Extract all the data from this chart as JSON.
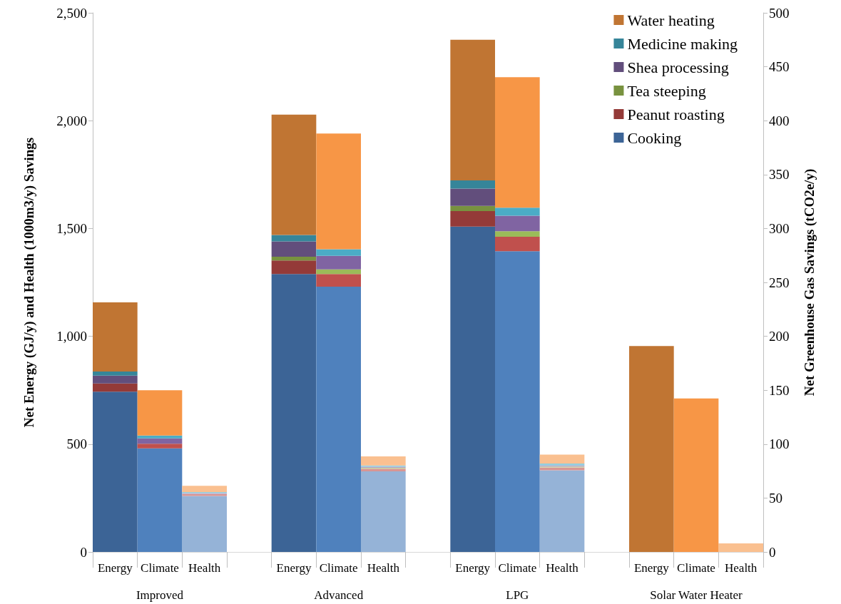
{
  "chart_data": {
    "type": "bar",
    "stacked": true,
    "ylabel": "Net Energy (GJ/y) and Health (1000m3/y) Savings",
    "y2label": "Net Greenhouse Gas Savings (tCO2e/y)",
    "categories": [
      "Energy",
      "Climate",
      "Health",
      null,
      "Energy",
      "Climate",
      "Health",
      null,
      "Energy",
      "Climate",
      "Health",
      null,
      "Energy",
      "Climate",
      "Health"
    ],
    "annotations": [
      "Improved",
      "Advanced",
      "LPG",
      "Solar Water Heater"
    ],
    "ylim": [
      0,
      2500
    ],
    "yticks": [
      0,
      500,
      {
        "value": 1000,
        "label": "1,000"
      },
      {
        "value": 1500,
        "label": "1,500"
      },
      {
        "value": 2000,
        "label": "2,000"
      },
      {
        "value": 2500,
        "label": "2,500"
      }
    ],
    "y2lim": [
      0,
      500
    ],
    "y2ticks": [
      0,
      50,
      100,
      150,
      200,
      250,
      300,
      350,
      400,
      450,
      500
    ],
    "grid": false,
    "legend": "top right",
    "series": [
      {
        "name": "Cooking",
        "color": "#3c6496",
        "colors": [
          "#3c6496",
          null,
          "#95b3d7",
          null,
          "#3c6496",
          null,
          "#95b3d7",
          null,
          "#3c6496",
          null,
          "#95b3d7",
          null,
          "#3c6496",
          null,
          "#95b3d7"
        ],
        "values": [
          743,
          null,
          260,
          null,
          1289,
          null,
          374,
          null,
          1509,
          null,
          379,
          null,
          0,
          null,
          0
        ]
      },
      {
        "axis": "y2",
        "colors": [
          null,
          "#4f81bd",
          null,
          null,
          null,
          "#4f81bd",
          null,
          null,
          null,
          "#4f81bd",
          null,
          null,
          null,
          "#4f81bd",
          null
        ],
        "values": [
          null,
          96,
          null,
          null,
          null,
          246,
          null,
          null,
          null,
          279,
          null,
          null,
          null,
          0,
          null
        ]
      },
      {
        "name": "Peanut roasting",
        "color": "#943a38",
        "colors": [
          "#943a38",
          null,
          "#d99694",
          null,
          "#943a38",
          null,
          "#d99694",
          null,
          "#943a38",
          null,
          "#d99694",
          null,
          "#943a38",
          null,
          "#d99694"
        ],
        "values": [
          38,
          null,
          9,
          null,
          63,
          null,
          12,
          null,
          72,
          null,
          13,
          null,
          0,
          null,
          0
        ]
      },
      {
        "axis": "y2",
        "colors": [
          null,
          "#c0504d",
          null,
          null,
          null,
          "#c0504d",
          null,
          null,
          null,
          "#c0504d",
          null,
          null,
          null,
          "#c0504d",
          null
        ],
        "values": [
          null,
          4.4,
          null,
          null,
          null,
          11.7,
          null,
          null,
          null,
          13.4,
          null,
          null,
          null,
          0,
          null
        ]
      },
      {
        "name": "Tea steeping",
        "color": "#78923f",
        "colors": [
          "#78923f",
          null,
          "#c3d69b",
          null,
          "#78923f",
          null,
          "#c3d69b",
          null,
          "#78923f",
          null,
          "#c3d69b",
          null,
          "#78923f",
          null,
          "#c3d69b"
        ],
        "values": [
          0,
          null,
          0,
          null,
          17,
          null,
          4,
          null,
          24,
          null,
          4,
          null,
          0,
          null,
          0
        ]
      },
      {
        "axis": "y2",
        "colors": [
          null,
          "#9bbb59",
          null,
          null,
          null,
          "#9bbb59",
          null,
          null,
          null,
          "#9bbb59",
          null,
          null,
          null,
          "#9bbb59",
          null
        ],
        "values": [
          null,
          0,
          null,
          null,
          null,
          4.4,
          null,
          null,
          null,
          5.1,
          null,
          null,
          null,
          0,
          null
        ]
      },
      {
        "name": "Shea processing",
        "color": "#624e7c",
        "colors": [
          "#624e7c",
          null,
          "#b3a2c7",
          null,
          "#624e7c",
          null,
          "#b3a2c7",
          null,
          "#624e7c",
          null,
          "#b3a2c7",
          null,
          "#624e7c",
          null,
          "#b3a2c7"
        ],
        "values": [
          37,
          null,
          4,
          null,
          71,
          null,
          5,
          null,
          80,
          null,
          5,
          null,
          0,
          null,
          0
        ]
      },
      {
        "axis": "y2",
        "colors": [
          null,
          "#8064a2",
          null,
          null,
          null,
          "#8064a2",
          null,
          null,
          null,
          "#8064a2",
          null,
          null,
          null,
          "#8064a2",
          null
        ],
        "values": [
          null,
          5,
          null,
          null,
          null,
          12.6,
          null,
          null,
          null,
          14.4,
          null,
          null,
          null,
          0,
          null
        ]
      },
      {
        "name": "Medicine making",
        "color": "#368599",
        "colors": [
          "#368599",
          null,
          "#93cddd",
          null,
          "#368599",
          null,
          "#93cddd",
          null,
          "#368599",
          null,
          "#93cddd",
          null,
          "#368599",
          null,
          "#93cddd"
        ],
        "values": [
          19,
          null,
          5,
          null,
          30,
          null,
          6,
          null,
          38,
          null,
          9,
          null,
          0,
          null,
          0
        ]
      },
      {
        "axis": "y2",
        "colors": [
          null,
          "#4bacc6",
          null,
          null,
          null,
          "#4bacc6",
          null,
          null,
          null,
          "#4bacc6",
          null,
          null,
          null,
          "#4bacc6",
          null
        ],
        "values": [
          null,
          2.6,
          null,
          null,
          null,
          6.1,
          null,
          null,
          null,
          7.4,
          null,
          null,
          null,
          0,
          null
        ]
      },
      {
        "name": "Water heating",
        "color": "#c07533",
        "colors": [
          "#c07533",
          null,
          "#fac090",
          null,
          "#c07533",
          null,
          "#fac090",
          null,
          "#c07533",
          null,
          "#fac090",
          null,
          "#c07533",
          null,
          "#fac090"
        ],
        "values": [
          320,
          null,
          29,
          null,
          558,
          null,
          42,
          null,
          652,
          null,
          41,
          null,
          955,
          null,
          40
        ]
      },
      {
        "axis": "y2",
        "colors": [
          null,
          "#f79646",
          null,
          null,
          null,
          "#f79646",
          null,
          null,
          null,
          "#f79646",
          null,
          null,
          null,
          "#f79646",
          null
        ],
        "values": [
          null,
          42,
          null,
          null,
          null,
          107.2,
          null,
          null,
          null,
          121,
          null,
          null,
          null,
          142.4,
          null
        ]
      }
    ]
  }
}
